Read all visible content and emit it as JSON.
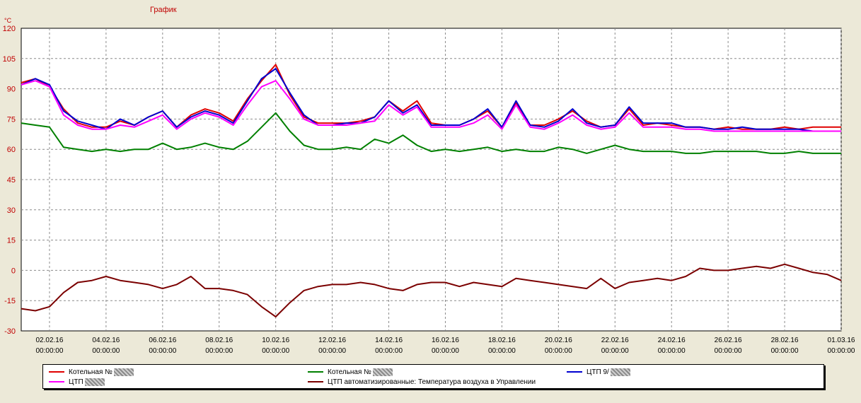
{
  "chart_data": {
    "type": "line",
    "title": "График",
    "ylabel": "°C",
    "xlabel": "",
    "ylim": [
      -30,
      120
    ],
    "yticks": [
      120,
      105,
      90,
      75,
      60,
      45,
      30,
      15,
      0,
      -15,
      -30
    ],
    "grid": true,
    "legend_position": "bottom",
    "xticks": [
      {
        "day": 2,
        "date": "02.02.16",
        "time": "00:00:00"
      },
      {
        "day": 4,
        "date": "04.02.16",
        "time": "00:00:00"
      },
      {
        "day": 6,
        "date": "06.02.16",
        "time": "00:00:00"
      },
      {
        "day": 8,
        "date": "08.02.16",
        "time": "00:00:00"
      },
      {
        "day": 10,
        "date": "10.02.16",
        "time": "00:00:00"
      },
      {
        "day": 12,
        "date": "12.02.16",
        "time": "00:00:00"
      },
      {
        "day": 14,
        "date": "14.02.16",
        "time": "00:00:00"
      },
      {
        "day": 16,
        "date": "16.02.16",
        "time": "00:00:00"
      },
      {
        "day": 18,
        "date": "18.02.16",
        "time": "00:00:00"
      },
      {
        "day": 20,
        "date": "20.02.16",
        "time": "00:00:00"
      },
      {
        "day": 22,
        "date": "22.02.16",
        "time": "00:00:00"
      },
      {
        "day": 24,
        "date": "24.02.16",
        "time": "00:00:00"
      },
      {
        "day": 26,
        "date": "26.02.16",
        "time": "00:00:00"
      },
      {
        "day": 28,
        "date": "28.02.16",
        "time": "00:00:00"
      },
      {
        "day": 30,
        "date": "01.03.16",
        "time": "00:00:00"
      }
    ],
    "x": [
      1.0,
      1.5,
      2.0,
      2.5,
      3.0,
      3.5,
      4.0,
      4.5,
      5.0,
      5.5,
      6.0,
      6.5,
      7.0,
      7.5,
      8.0,
      8.5,
      9.0,
      9.5,
      10.0,
      10.5,
      11.0,
      11.5,
      12.0,
      12.5,
      13.0,
      13.5,
      14.0,
      14.5,
      15.0,
      15.5,
      16.0,
      16.5,
      17.0,
      17.5,
      18.0,
      18.5,
      19.0,
      19.5,
      20.0,
      20.5,
      21.0,
      21.5,
      22.0,
      22.5,
      23.0,
      23.5,
      24.0,
      24.5,
      25.0,
      25.5,
      26.0,
      26.5,
      27.0,
      27.5,
      28.0,
      28.5,
      29.0,
      29.5,
      30.0
    ],
    "series": [
      {
        "name": "Котельная №",
        "color": "#e00000",
        "values": [
          93,
          95,
          91,
          80,
          73,
          71,
          71,
          74,
          72,
          76,
          79,
          71,
          77,
          80,
          78,
          74,
          85,
          94,
          102,
          87,
          76,
          73,
          73,
          73,
          74,
          76,
          84,
          79,
          84,
          73,
          72,
          72,
          75,
          79,
          71,
          83,
          72,
          72,
          75,
          79,
          74,
          71,
          72,
          80,
          72,
          73,
          72,
          71,
          71,
          70,
          71,
          70,
          70,
          70,
          71,
          70,
          71,
          71,
          71
        ]
      },
      {
        "name": "Котельная №",
        "color": "#008000",
        "values": [
          73,
          72,
          71,
          61,
          60,
          59,
          60,
          59,
          60,
          60,
          63,
          60,
          61,
          63,
          61,
          60,
          64,
          71,
          78,
          69,
          62,
          60,
          60,
          61,
          60,
          65,
          63,
          67,
          62,
          59,
          60,
          59,
          60,
          61,
          59,
          60,
          59,
          59,
          61,
          60,
          58,
          60,
          62,
          60,
          59,
          59,
          59,
          58,
          58,
          59,
          59,
          59,
          59,
          58,
          58,
          59,
          58,
          58,
          58
        ]
      },
      {
        "name": "ЦТП  9/",
        "color": "#0000d0",
        "values": [
          92,
          95,
          92,
          79,
          74,
          72,
          70,
          75,
          72,
          76,
          79,
          71,
          76,
          79,
          77,
          73,
          84,
          95,
          100,
          88,
          77,
          72,
          72,
          73,
          73,
          76,
          84,
          78,
          82,
          72,
          72,
          72,
          75,
          80,
          71,
          84,
          72,
          71,
          74,
          80,
          73,
          71,
          72,
          81,
          73,
          73,
          73,
          71,
          71,
          70,
          70,
          71,
          70,
          70,
          70,
          70,
          69,
          69,
          69
        ]
      },
      {
        "name": "ЦТП",
        "color": "#ff00ff",
        "values": [
          92,
          94,
          91,
          77,
          72,
          70,
          70,
          72,
          71,
          74,
          77,
          70,
          75,
          78,
          76,
          72,
          82,
          91,
          94,
          85,
          75,
          72,
          72,
          72,
          73,
          74,
          82,
          77,
          81,
          71,
          71,
          71,
          73,
          77,
          70,
          82,
          71,
          70,
          73,
          77,
          72,
          70,
          71,
          78,
          71,
          71,
          71,
          70,
          70,
          69,
          69,
          69,
          69,
          69,
          69,
          69,
          69,
          69,
          69
        ]
      },
      {
        "name": "ЦТП автоматизированные: Температура воздуха в Управлении",
        "color": "#7b0000",
        "values": [
          -19,
          -20,
          -18,
          -11,
          -6,
          -5,
          -3,
          -5,
          -6,
          -7,
          -9,
          -7,
          -3,
          -9,
          -9,
          -10,
          -12,
          -18,
          -23,
          -16,
          -10,
          -8,
          -7,
          -7,
          -6,
          -7,
          -9,
          -10,
          -7,
          -6,
          -6,
          -8,
          -6,
          -7,
          -8,
          -4,
          -5,
          -6,
          -7,
          -8,
          -9,
          -4,
          -9,
          -6,
          -5,
          -4,
          -5,
          -3,
          1,
          0,
          0,
          1,
          2,
          1,
          3,
          1,
          -1,
          -2,
          -5
        ]
      }
    ]
  },
  "legend": {
    "entries": [
      {
        "label": "Котельная №",
        "color": "#e00000"
      },
      {
        "label": "ЦТП",
        "color": "#ff00ff"
      },
      {
        "label": "Котельная №",
        "color": "#008000"
      },
      {
        "label": "ЦТП автоматизированные: Температура воздуха в Управлении",
        "color": "#7b0000"
      },
      {
        "label": "ЦТП  9/",
        "color": "#0000d0"
      }
    ]
  }
}
